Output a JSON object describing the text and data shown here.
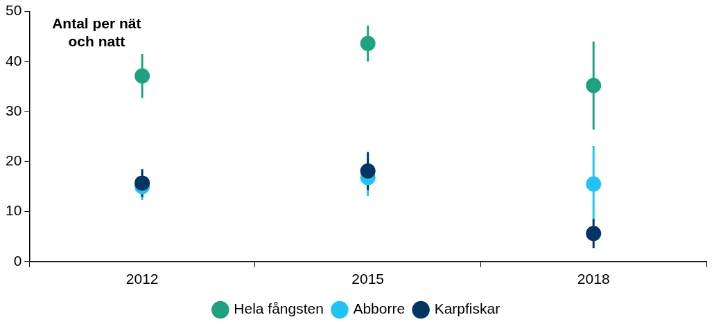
{
  "chart_data": {
    "type": "scatter",
    "ylabel": "Antal per nät\noch natt",
    "categories": [
      "2012",
      "2015",
      "2018"
    ],
    "series": [
      {
        "name": "Hela fångsten",
        "color": "#1ea382",
        "values": [
          37.1,
          43.6,
          35.2
        ],
        "errors": [
          4.4,
          3.6,
          8.8
        ]
      },
      {
        "name": "Abborre",
        "color": "#20c4f4",
        "values": [
          15.0,
          16.8,
          15.5
        ],
        "errors": [
          2.7,
          3.7,
          7.6
        ]
      },
      {
        "name": "Karpfiskar",
        "color": "#023564",
        "values": [
          15.7,
          18.1,
          5.6
        ],
        "errors": [
          2.8,
          3.8,
          2.9
        ]
      }
    ],
    "ylim": [
      0,
      50
    ],
    "yticks": [
      0,
      10,
      20,
      30,
      40,
      50
    ],
    "grid": false,
    "legend": "bottom",
    "marker": "circle"
  }
}
